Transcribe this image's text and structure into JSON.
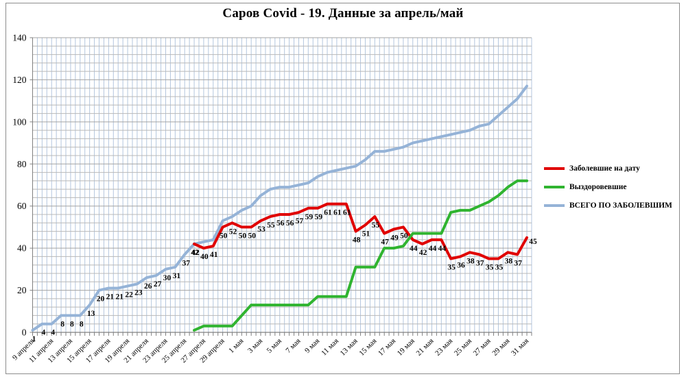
{
  "window": {
    "title": "Саров Covid - 19. Данные за апрель/май"
  },
  "legend": {
    "items": [
      {
        "label": "Заболевшие на дату",
        "color": "#e00000"
      },
      {
        "label": "Выздоровевшие",
        "color": "#30b430"
      },
      {
        "label": "ВСЕГО ПО ЗАБОЛЕВШИМ",
        "color": "#95b3d7"
      }
    ]
  },
  "chart_data": {
    "type": "line",
    "title": "Саров Covid - 19. Данные за апрель/май",
    "xlabel": "",
    "ylabel": "",
    "ylim": [
      0,
      140
    ],
    "y_major_step": 20,
    "y_minor_step": 4,
    "y_ticks": [
      0,
      20,
      40,
      60,
      80,
      100,
      120,
      140
    ],
    "days_total": 53,
    "x_tick_every_days": 2,
    "grid": "both",
    "legend_position": "right",
    "x_tick_labels": [
      "9 апреля",
      "11 апреля",
      "13 апреля",
      "15 апреля",
      "17 апреля",
      "19 апреля",
      "21 апреля",
      "23 апреля",
      "25 апреля",
      "27 апреля",
      "29 апреля",
      "1 мая",
      "3 мая",
      "5 мая",
      "7 мая",
      "9 мая",
      "11 мая",
      "13 мая",
      "15 мая",
      "17 мая",
      "19 мая",
      "21 мая",
      "23 мая",
      "25 мая",
      "27 мая",
      "29 мая",
      "31 мая"
    ],
    "series": [
      {
        "key": "total-cases",
        "name": "ВСЕГО ПО ЗАБОЛЕВШИМ",
        "color": "#95b3d7",
        "line_width": 4,
        "draw_order": 0,
        "start_index": 0,
        "values": [
          1,
          4,
          4,
          8,
          8,
          8,
          13,
          20,
          21,
          21,
          22,
          23,
          26,
          27,
          30,
          31,
          37,
          42,
          43,
          44,
          53,
          55,
          58,
          60,
          65,
          68,
          69,
          69,
          70,
          71,
          74,
          76,
          77,
          78,
          79,
          82,
          86,
          86,
          87,
          88,
          90,
          91,
          92,
          93,
          94,
          95,
          96,
          98,
          99,
          103,
          107,
          111,
          117
        ],
        "show_labels": 18,
        "label_dx": 2,
        "label_dy": 16,
        "label_overrides": {}
      },
      {
        "key": "active-cases",
        "name": "Заболевшие на дату",
        "color": "#e00000",
        "line_width": 4,
        "draw_order": 1,
        "start_index": 17,
        "values": [
          42,
          40,
          41,
          50,
          52,
          50,
          50,
          53,
          55,
          56,
          56,
          57,
          59,
          59,
          61,
          61,
          61,
          48,
          51,
          55,
          47,
          49,
          50,
          44,
          42,
          44,
          44,
          35,
          36,
          38,
          37,
          35,
          35,
          38,
          37,
          45
        ],
        "show_labels": "all",
        "label_dx": 1,
        "label_dy": 16,
        "label_overrides": {
          "35": {
            "dx": 9,
            "dy": 9
          }
        }
      },
      {
        "key": "recovered",
        "name": "Выздоровевшие",
        "color": "#30b430",
        "line_width": 4,
        "draw_order": 2,
        "start_index": 17,
        "values": [
          1,
          3,
          3,
          3,
          3,
          8,
          13,
          13,
          13,
          13,
          13,
          13,
          13,
          17,
          17,
          17,
          17,
          31,
          31,
          31,
          40,
          40,
          41,
          47,
          47,
          47,
          47,
          57,
          58,
          58,
          60,
          62,
          65,
          69,
          72,
          72
        ],
        "show_labels": 0,
        "label_dx": 0,
        "label_dy": 16,
        "label_overrides": {}
      }
    ]
  }
}
